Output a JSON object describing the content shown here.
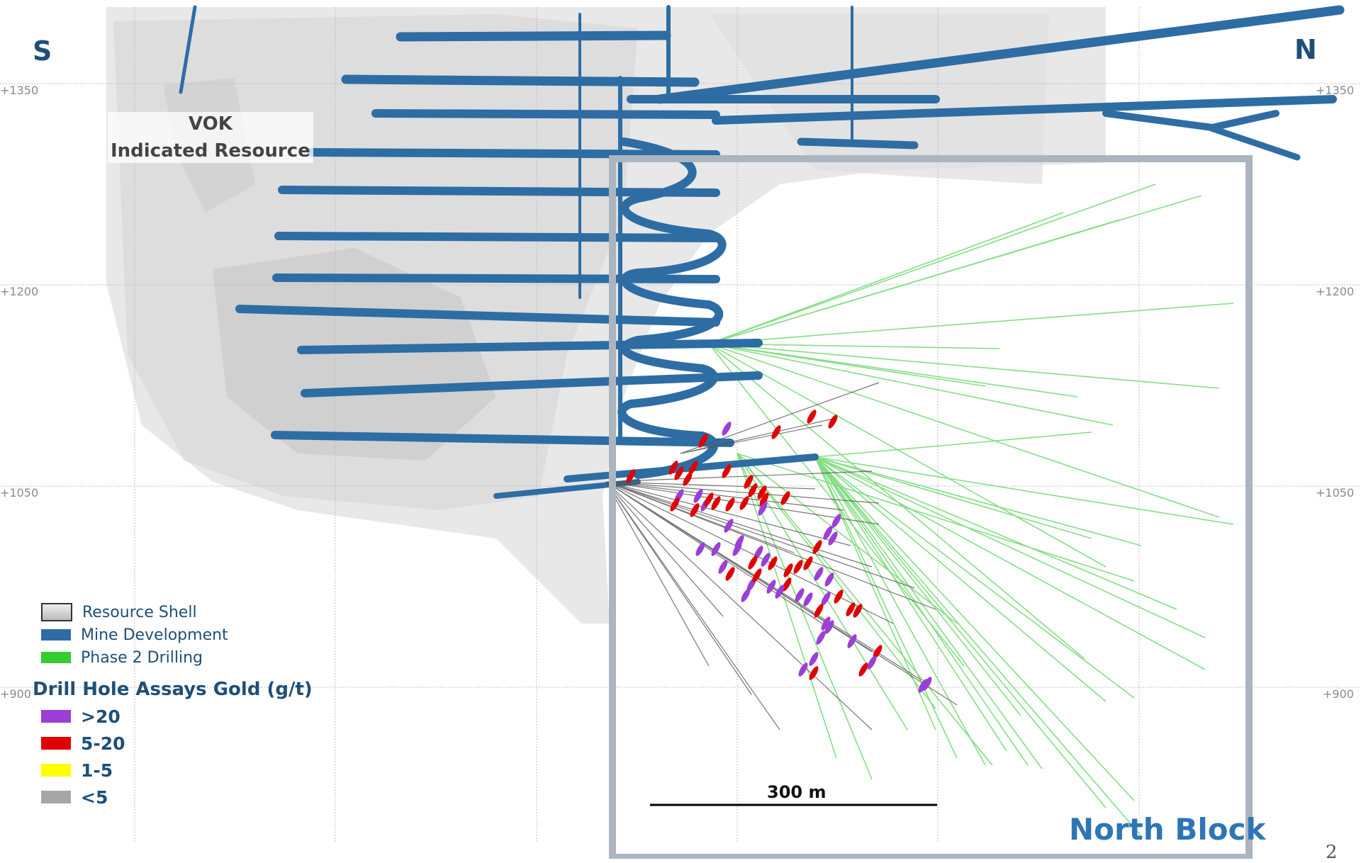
{
  "directions": {
    "south": "S",
    "north": "N"
  },
  "elevations": [
    "+1350",
    "+1200",
    "+1050",
    "+900"
  ],
  "resource_label": {
    "line1": "VOK",
    "line2": "Indicated Resource"
  },
  "block_label": "North Block",
  "scale_bar": {
    "label": "300 m"
  },
  "page_number": "2",
  "legend": {
    "items": [
      {
        "label": "Resource Shell",
        "color": "#c8c8c8"
      },
      {
        "label": "Mine Development",
        "color": "#2e6da4"
      },
      {
        "label": "Phase 2 Drilling",
        "color": "#33cc33"
      }
    ],
    "assay_title": "Drill Hole Assays Gold (g/t)",
    "assays": [
      {
        "label": ">20",
        "color": "#9b3fd6"
      },
      {
        "label": "5-20",
        "color": "#e00000"
      },
      {
        "label": "1-5",
        "color": "#ffff00"
      },
      {
        "label": "<5",
        "color": "#a6a6a6"
      }
    ]
  },
  "colors": {
    "development": "#2e6da4",
    "drilling_green": "#6fd96f",
    "drill_trace": "#555555",
    "frame": "#aab5c0",
    "grid": "#bdbdbd"
  }
}
